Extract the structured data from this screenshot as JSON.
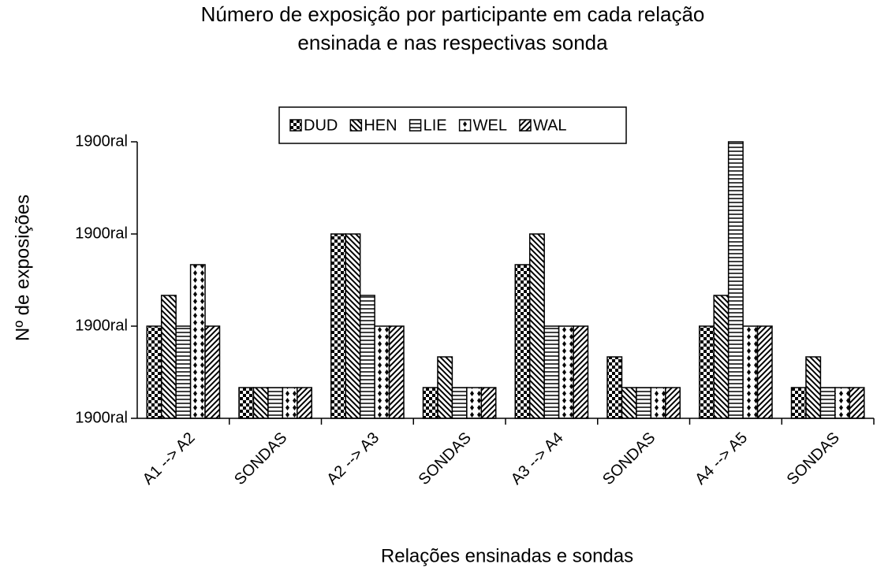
{
  "chart_data": {
    "type": "bar",
    "title": [
      "Número de exposição por participante em cada relação",
      "ensinada e nas respectivas sonda"
    ],
    "x_label": "Relações ensinadas e sondas",
    "y_label": "Nº de exposições",
    "categories": [
      "A1 --> A2",
      "SONDAS",
      "A2 --> A3",
      "SONDAS",
      "A3 --> A4",
      "SONDAS",
      "A4 --> A5",
      "SONDAS"
    ],
    "series": [
      {
        "name": "DUD",
        "color": "#000000",
        "values": [
          3,
          1,
          6,
          1,
          5,
          2,
          3,
          1
        ]
      },
      {
        "name": "HEN",
        "color": "#000000",
        "values": [
          4,
          1,
          6,
          2,
          6,
          1,
          4,
          2
        ]
      },
      {
        "name": "LIE",
        "color": "#000000",
        "values": [
          3,
          1,
          4,
          1,
          3,
          1,
          9,
          1
        ]
      },
      {
        "name": "WEL",
        "color": "#000000",
        "values": [
          5,
          1,
          3,
          1,
          3,
          1,
          3,
          1
        ]
      },
      {
        "name": "WAL",
        "color": "#000000",
        "values": [
          3,
          1,
          3,
          1,
          3,
          1,
          3,
          1
        ]
      }
    ],
    "ylim": [
      0,
      9
    ],
    "yticks": [
      {
        "value": 0,
        "label": "1900ral"
      },
      {
        "value": 3,
        "label": "1900ral"
      },
      {
        "value": 6,
        "label": "1900ral"
      },
      {
        "value": 9,
        "label": "1900ral"
      }
    ],
    "legend": "top",
    "grid": false
  }
}
